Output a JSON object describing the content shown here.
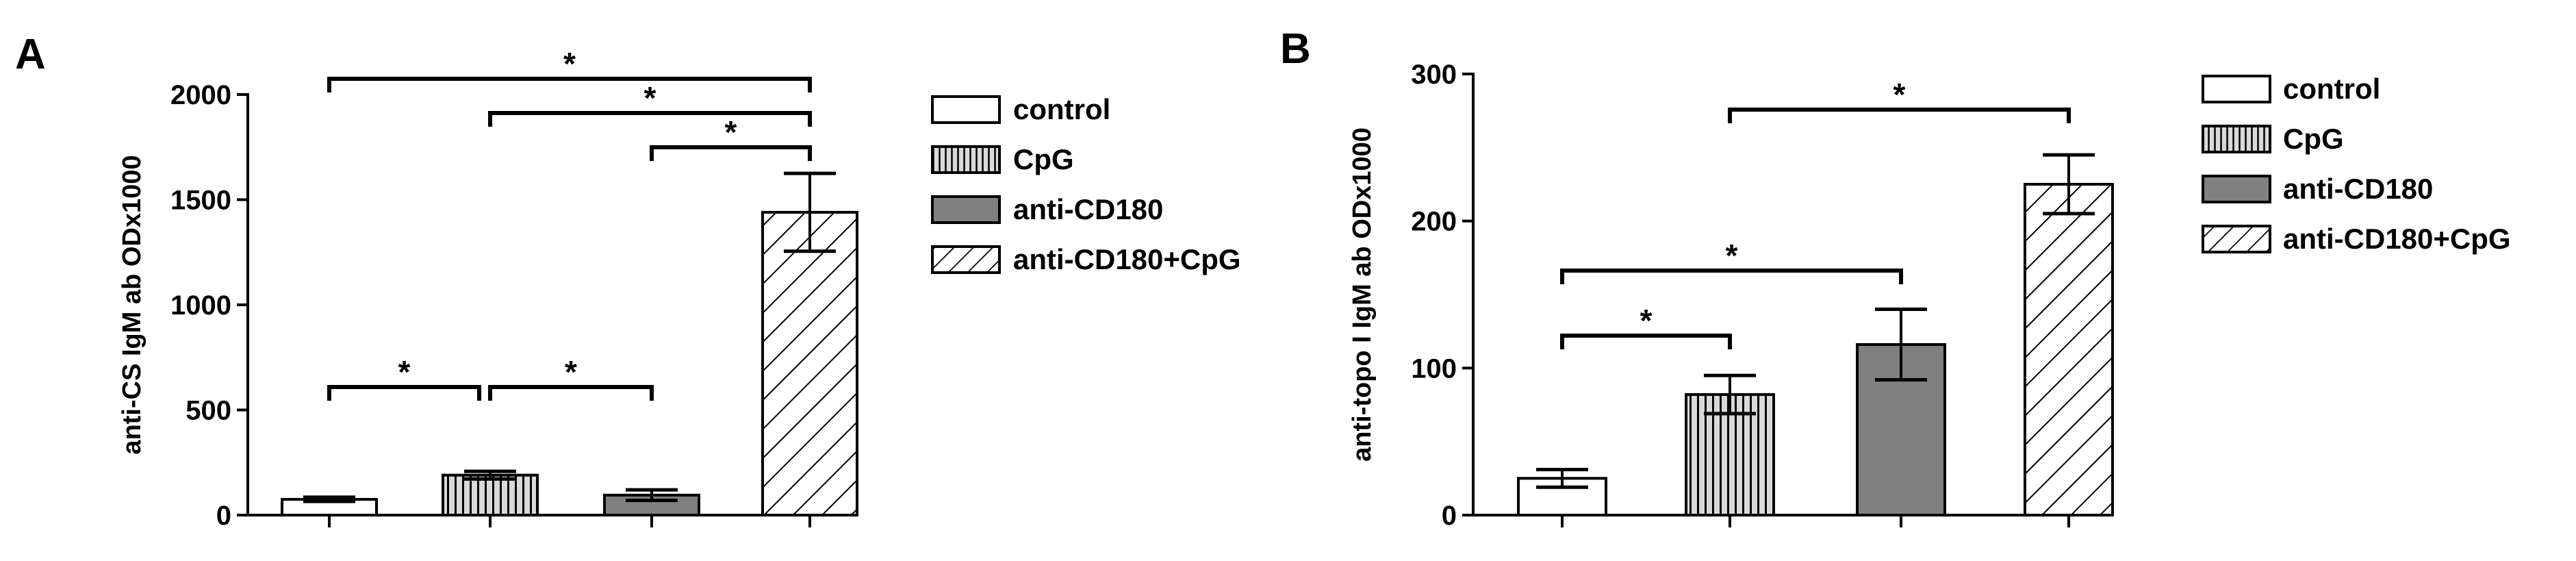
{
  "chart_data": [
    {
      "type": "bar",
      "panel_label": "A",
      "categories": [
        "control",
        "CpG",
        "anti-CD180",
        "anti-CD180+CpG"
      ],
      "values": [
        75,
        190,
        95,
        1440
      ],
      "errors": [
        10,
        18,
        25,
        185
      ],
      "ylabel": "anti-CS IgM ab ODx1000",
      "xlabel": "",
      "ylim": [
        0,
        2000
      ],
      "yticks": [
        "0",
        "500",
        "1000",
        "1500",
        "2000"
      ],
      "legend": [
        "control",
        "CpG",
        "anti-CD180",
        "anti-CD180+CpG"
      ],
      "legend_position": "right",
      "significance": [
        {
          "from": 0,
          "to": 3,
          "label": "*"
        },
        {
          "from": 1,
          "to": 3,
          "label": "*"
        },
        {
          "from": 2,
          "to": 3,
          "label": "*"
        },
        {
          "from": 0,
          "to": 1,
          "label": "*"
        },
        {
          "from": 1,
          "to": 2,
          "label": "*"
        }
      ]
    },
    {
      "type": "bar",
      "panel_label": "B",
      "categories": [
        "control",
        "CpG",
        "anti-CD180",
        "anti-CD180+CpG"
      ],
      "values": [
        25,
        82,
        116,
        225
      ],
      "errors": [
        6,
        13,
        24,
        20
      ],
      "ylabel": "anti-topo I IgM ab ODx1000",
      "xlabel": "",
      "ylim": [
        0,
        300
      ],
      "yticks": [
        "0",
        "100",
        "200",
        "300"
      ],
      "legend": [
        "control",
        "CpG",
        "anti-CD180",
        "anti-CD180+CpG"
      ],
      "legend_position": "right",
      "significance": [
        {
          "from": 1,
          "to": 3,
          "label": "*"
        },
        {
          "from": 0,
          "to": 2,
          "label": "*"
        },
        {
          "from": 0,
          "to": 1,
          "label": "*"
        }
      ]
    }
  ],
  "colors": {
    "control": "#ffffff",
    "CpG": "#d9d9d9",
    "anti-CD180": "#808080",
    "anti-CD180+CpG": "#ffffff",
    "outline": "#000000"
  },
  "patterns": [
    "none",
    "vertical-lines",
    "solid",
    "diagonal-lines"
  ]
}
